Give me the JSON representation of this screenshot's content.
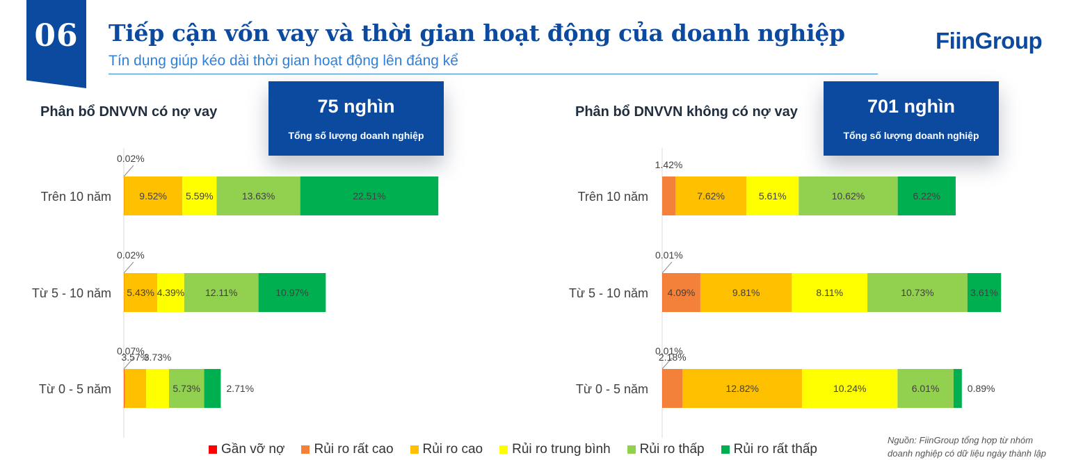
{
  "header": {
    "number": "06",
    "title": "Tiếp cận vốn vay và thời gian hoạt động của doanh nghiệp",
    "subtitle": "Tín dụng giúp kéo dài thời gian hoạt động lên đáng kể",
    "logo": "FiinGroup"
  },
  "panels": {
    "left": {
      "title": "Phân bổ DNVVN có nợ vay",
      "kpi_value": "75 nghìn",
      "kpi_label": "Tổng số lượng doanh nghiệp"
    },
    "right": {
      "title": "Phân bổ DNVVN không có nợ vay",
      "kpi_value": "701 nghìn",
      "kpi_label": "Tổng số lượng doanh nghiệp"
    }
  },
  "legend": [
    {
      "label": "Gần vỡ nợ",
      "color": "#ff0000"
    },
    {
      "label": "Rủi ro rất cao",
      "color": "#f4813a"
    },
    {
      "label": "Rủi ro cao",
      "color": "#ffc000"
    },
    {
      "label": "Rủi ro trung bình",
      "color": "#ffff00"
    },
    {
      "label": "Rủi ro thấp",
      "color": "#92d050"
    },
    {
      "label": "Rủi ro rất thấp",
      "color": "#00b050"
    }
  ],
  "source": {
    "line1": "Nguồn: FiinGroup tổng hợp từ nhóm",
    "line2": "doanh nghiệp có dữ liệu ngày thành lập"
  },
  "chart_data": [
    {
      "type": "bar",
      "orientation": "horizontal",
      "stacked": true,
      "title": "Phân bổ DNVVN có nợ vay",
      "categories": [
        "Trên 10 năm",
        "Từ 5 - 10 năm",
        "Từ 0 - 5 năm"
      ],
      "series": [
        {
          "name": "Gần vỡ nợ",
          "values": [
            0.02,
            0.02,
            0.07
          ]
        },
        {
          "name": "Rủi ro rất cao",
          "values": [
            0,
            0,
            0
          ]
        },
        {
          "name": "Rủi ro cao",
          "values": [
            9.52,
            5.43,
            3.57
          ]
        },
        {
          "name": "Rủi ro trung bình",
          "values": [
            5.59,
            4.39,
            3.73
          ]
        },
        {
          "name": "Rủi ro thấp",
          "values": [
            13.63,
            12.11,
            5.73
          ]
        },
        {
          "name": "Rủi ro rất thấp",
          "values": [
            22.51,
            10.97,
            2.71
          ]
        }
      ],
      "unit": "%",
      "legend": "bottom"
    },
    {
      "type": "bar",
      "orientation": "horizontal",
      "stacked": true,
      "title": "Phân bổ DNVVN không có nợ vay",
      "categories": [
        "Trên 10 năm",
        "Từ 5 - 10 năm",
        "Từ 0 - 5 năm"
      ],
      "series": [
        {
          "name": "Gần vỡ nợ",
          "values": [
            0,
            0.01,
            0.01
          ]
        },
        {
          "name": "Rủi ro rất cao",
          "values": [
            1.42,
            4.09,
            2.18
          ]
        },
        {
          "name": "Rủi ro cao",
          "values": [
            7.62,
            9.81,
            12.82
          ]
        },
        {
          "name": "Rủi ro trung bình",
          "values": [
            5.61,
            8.11,
            10.24
          ]
        },
        {
          "name": "Rủi ro thấp",
          "values": [
            10.62,
            10.73,
            6.01
          ]
        },
        {
          "name": "Rủi ro rất thấp",
          "values": [
            6.22,
            3.61,
            0.89
          ]
        }
      ],
      "unit": "%",
      "legend": "bottom"
    }
  ]
}
